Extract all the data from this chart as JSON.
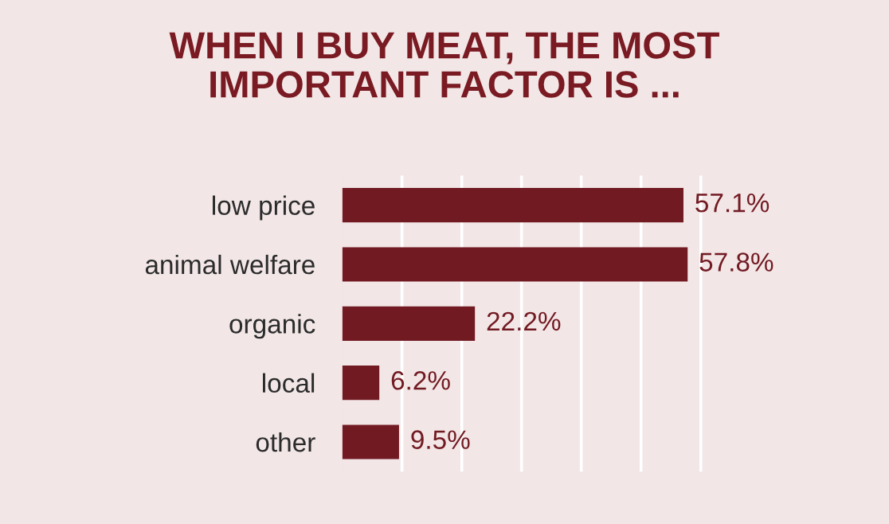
{
  "chart_data": {
    "type": "bar",
    "orientation": "horizontal",
    "title": "WHEN I BUY MEAT, THE MOST\nIMPORTANT FACTOR IS ...",
    "categories": [
      "low price",
      "animal welfare",
      "organic",
      "local",
      "other"
    ],
    "values": [
      57.1,
      57.8,
      22.2,
      6.2,
      9.5
    ],
    "value_labels": [
      "57.1%",
      "57.8%",
      "22.2%",
      "6.2%",
      "9.5%"
    ],
    "color": "#721a22",
    "xlim": [
      0,
      91.5
    ],
    "xticks": [
      {
        "value": 10,
        "label": null
      },
      {
        "value": 20,
        "label": null
      },
      {
        "value": 30,
        "label": null
      },
      {
        "value": 40,
        "label": null
      },
      {
        "value": 50,
        "label": null
      },
      {
        "value": 60,
        "label": null
      }
    ],
    "tick_labels": "y",
    "grid": "x"
  }
}
